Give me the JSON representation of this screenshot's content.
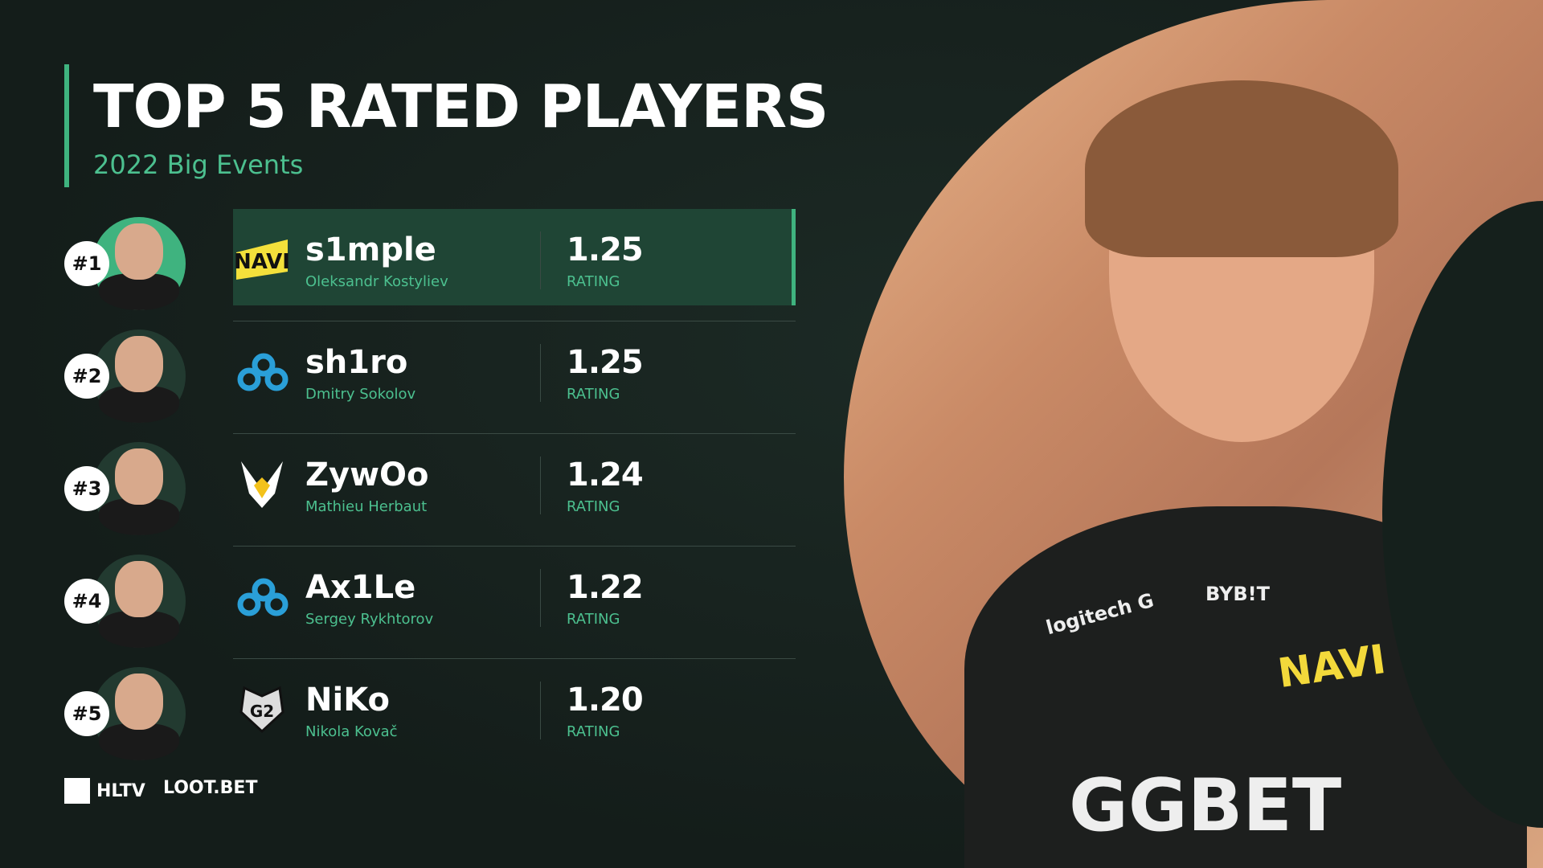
{
  "header": {
    "title": "TOP 5 RATED PLAYERS",
    "subtitle": "2022 Big Events"
  },
  "accent_color": "#3fb37f",
  "players": [
    {
      "rank": "#1",
      "nick": "s1mple",
      "name": "Oleksandr Kostyliev",
      "rating": "1.25",
      "rating_label": "RATING",
      "team_icon": "navi-logo",
      "highlighted": true
    },
    {
      "rank": "#2",
      "nick": "sh1ro",
      "name": "Dmitry Sokolov",
      "rating": "1.25",
      "rating_label": "RATING",
      "team_icon": "cloud9-logo"
    },
    {
      "rank": "#3",
      "nick": "ZywOo",
      "name": "Mathieu Herbaut",
      "rating": "1.24",
      "rating_label": "RATING",
      "team_icon": "vitality-logo"
    },
    {
      "rank": "#4",
      "nick": "Ax1Le",
      "name": "Sergey Rykhtorov",
      "rating": "1.22",
      "rating_label": "RATING",
      "team_icon": "cloud9-logo"
    },
    {
      "rank": "#5",
      "nick": "NiKo",
      "name": "Nikola Kovač",
      "rating": "1.20",
      "rating_label": "RATING",
      "team_icon": "g2-logo"
    }
  ],
  "footer": {
    "hltv": "HLTV",
    "lootbet": "LOOT.BET"
  },
  "photo": {
    "sponsors": [
      "logitech G",
      "BYB!T",
      "NAVI",
      "GGBET"
    ]
  }
}
